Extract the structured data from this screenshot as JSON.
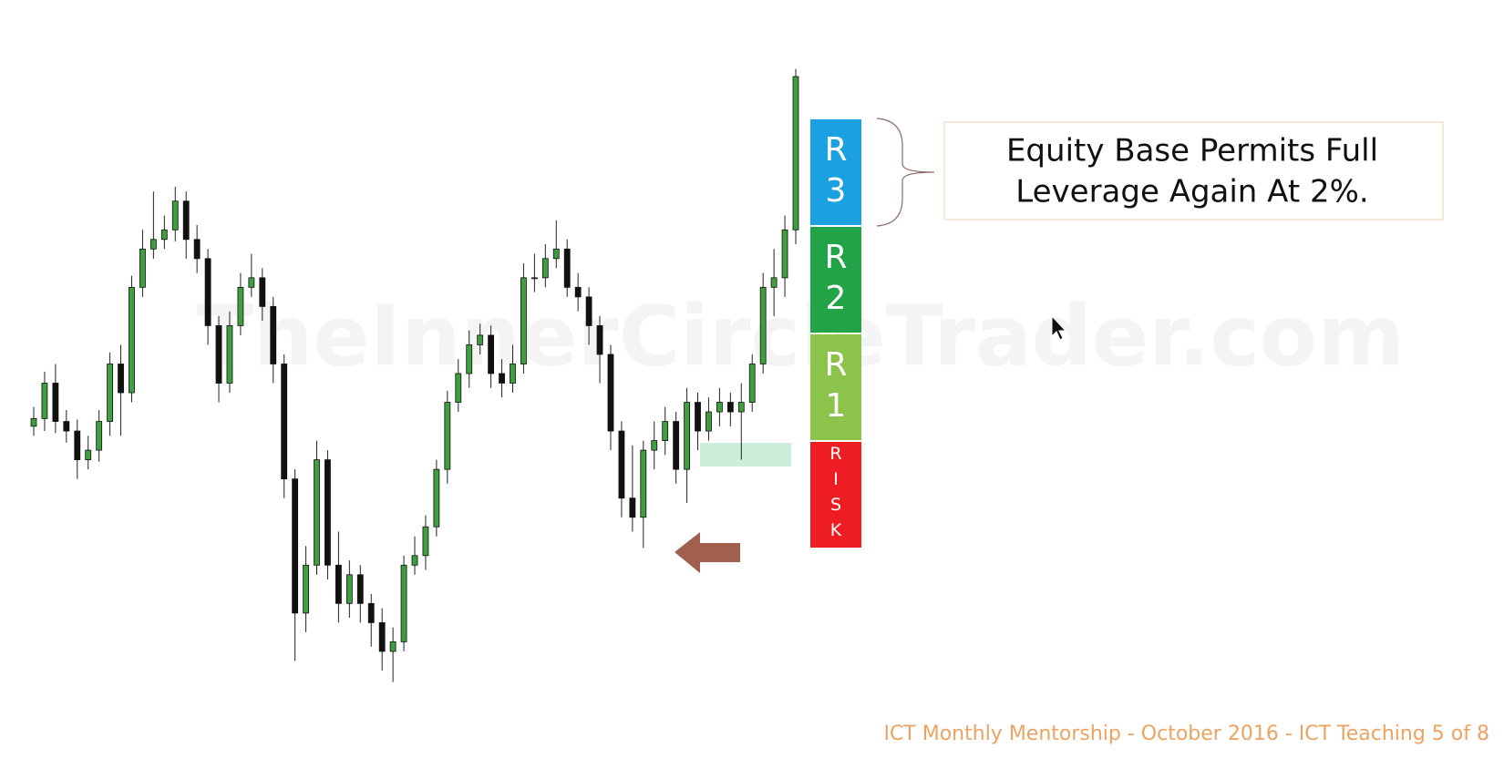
{
  "chart_data": {
    "type": "candlestick",
    "up_color": "#3f9e3f",
    "down_color": "#111111",
    "ylim": [
      60,
      740
    ],
    "open": [
      355,
      363,
      400,
      360,
      350,
      320,
      330,
      360,
      420,
      390,
      500,
      540,
      550,
      560,
      590,
      550,
      530,
      460,
      400,
      460,
      500,
      510,
      480,
      420,
      300,
      160,
      210,
      320,
      210,
      170,
      200,
      170,
      150,
      120,
      130,
      210,
      220,
      250,
      310,
      380,
      410,
      440,
      450,
      410,
      400,
      420,
      510,
      510,
      530,
      540,
      500,
      490,
      460,
      430,
      350,
      280,
      260,
      330,
      340,
      360,
      310,
      380,
      350,
      370,
      380,
      370,
      380,
      420,
      500,
      510,
      560
    ],
    "close": [
      363,
      400,
      360,
      350,
      320,
      330,
      360,
      420,
      390,
      500,
      540,
      550,
      560,
      590,
      550,
      530,
      460,
      400,
      460,
      500,
      510,
      480,
      420,
      300,
      160,
      210,
      320,
      210,
      170,
      200,
      170,
      150,
      120,
      130,
      210,
      220,
      250,
      310,
      380,
      410,
      440,
      450,
      410,
      400,
      420,
      510,
      510,
      530,
      540,
      500,
      490,
      460,
      430,
      350,
      280,
      260,
      330,
      340,
      360,
      310,
      380,
      350,
      370,
      380,
      370,
      380,
      420,
      500,
      510,
      560,
      720
    ],
    "high": [
      375,
      412,
      420,
      372,
      362,
      345,
      372,
      432,
      440,
      512,
      560,
      600,
      575,
      605,
      600,
      565,
      540,
      470,
      475,
      515,
      535,
      520,
      490,
      430,
      310,
      230,
      340,
      330,
      245,
      215,
      210,
      180,
      165,
      145,
      220,
      240,
      262,
      320,
      392,
      425,
      455,
      462,
      460,
      425,
      440,
      525,
      535,
      545,
      570,
      550,
      515,
      500,
      470,
      440,
      360,
      335,
      340,
      360,
      375,
      370,
      395,
      390,
      385,
      395,
      390,
      400,
      430,
      515,
      540,
      575,
      728
    ],
    "low": [
      345,
      350,
      348,
      338,
      300,
      310,
      318,
      345,
      345,
      380,
      490,
      530,
      540,
      548,
      530,
      515,
      440,
      380,
      390,
      450,
      490,
      465,
      400,
      280,
      110,
      140,
      200,
      195,
      150,
      155,
      150,
      125,
      100,
      88,
      120,
      200,
      205,
      240,
      295,
      370,
      395,
      430,
      395,
      385,
      390,
      410,
      495,
      500,
      520,
      490,
      475,
      440,
      400,
      330,
      260,
      245,
      228,
      310,
      325,
      295,
      275,
      330,
      340,
      355,
      355,
      320,
      370,
      410,
      470,
      490,
      545
    ]
  },
  "watermark": "TheInnerCircleTrader.com",
  "levels": [
    {
      "label": "R3",
      "color": "#1ba1e2"
    },
    {
      "label": "R2",
      "color": "#22a348"
    },
    {
      "label": "R1",
      "color": "#8cc34b"
    },
    {
      "label": "RISK",
      "color": "#ee1d24"
    }
  ],
  "callout": {
    "lines": [
      "Equity Base Permits Full",
      "Leverage Again At 2%."
    ]
  },
  "footer": "ICT Monthly Mentorship - October 2016 - ICT Teaching 5 of 8"
}
